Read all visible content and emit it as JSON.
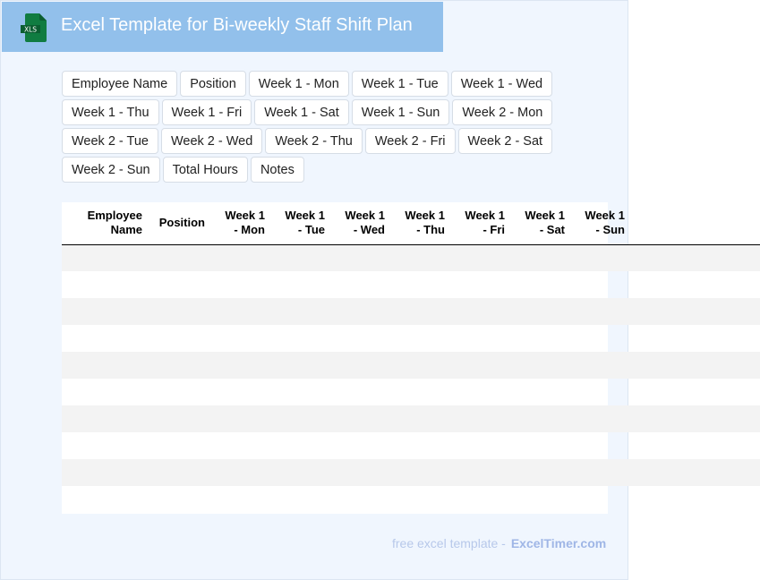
{
  "header": {
    "title": "Excel Template for Bi-weekly Staff Shift Plan",
    "logo_text": "XLS",
    "logo_color": "#107c41",
    "bg_color": "#92c0eb"
  },
  "chips": [
    "Employee Name",
    "Position",
    "Week 1 - Mon",
    "Week 1 - Tue",
    "Week 1 - Wed",
    "Week 1 - Thu",
    "Week 1 - Fri",
    "Week 1 - Sat",
    "Week 1 - Sun",
    "Week 2 - Mon",
    "Week 2 - Tue",
    "Week 2 - Wed",
    "Week 2 - Thu",
    "Week 2 - Fri",
    "Week 2 - Sat",
    "Week 2 - Sun",
    "Total Hours",
    "Notes"
  ],
  "table": {
    "headers": [
      [
        "Employee",
        "Name"
      ],
      [
        "Position",
        ""
      ],
      [
        "Week 1",
        "- Mon"
      ],
      [
        "Week 1",
        "- Tue"
      ],
      [
        "Week 1",
        "- Wed"
      ],
      [
        "Week 1",
        "- Thu"
      ],
      [
        "Week 1",
        "- Fri"
      ],
      [
        "Week 1",
        "- Sat"
      ],
      [
        "Week 1",
        "- Sun"
      ]
    ],
    "empty_rows": 10
  },
  "footer": {
    "text": "free excel template -",
    "brand": "ExcelTimer.com"
  }
}
